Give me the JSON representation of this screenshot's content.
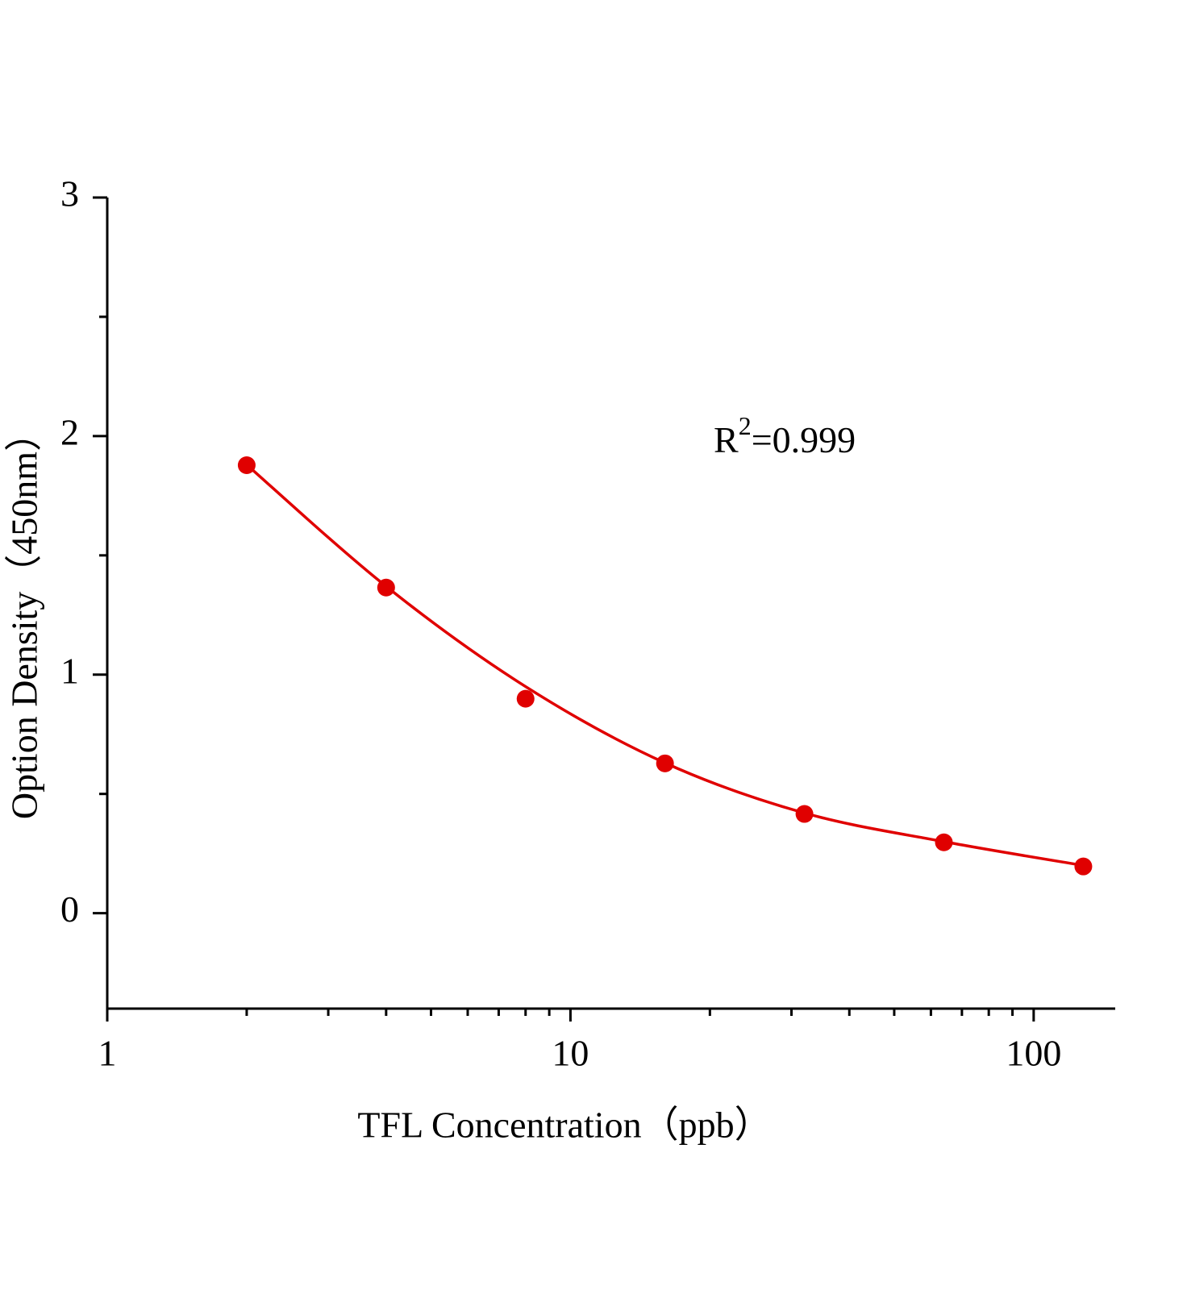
{
  "chart_data": {
    "type": "scatter",
    "x_label": "TFL Concentration（ppb）",
    "y_label": "Option Density（450nm）",
    "annotation": {
      "base": "R",
      "superscript": "2",
      "text": "=0.999"
    },
    "xscale": "log",
    "xlim": [
      1,
      150
    ],
    "xticks": [
      1,
      10,
      100
    ],
    "xminorticks": [
      2,
      3,
      4,
      5,
      6,
      7,
      8,
      9,
      20,
      30,
      40,
      50,
      60,
      70,
      80,
      90
    ],
    "ylim": [
      -0.4,
      3
    ],
    "yticks": [
      0,
      1,
      2,
      3
    ],
    "yminorticks": [
      0.5,
      1.5,
      2.5
    ],
    "x": [
      2,
      4,
      8,
      16,
      32,
      64,
      128
    ],
    "series": [
      {
        "color": "#e00000",
        "values": [
          1.878,
          1.365,
          0.899,
          0.628,
          0.416,
          0.297,
          0.196
        ]
      },
      {
        "color": "#e00000",
        "line": true,
        "values": [
          1.88,
          1.37,
          0.95,
          0.63,
          0.42,
          0.3,
          0.2
        ]
      }
    ],
    "grid": false
  }
}
